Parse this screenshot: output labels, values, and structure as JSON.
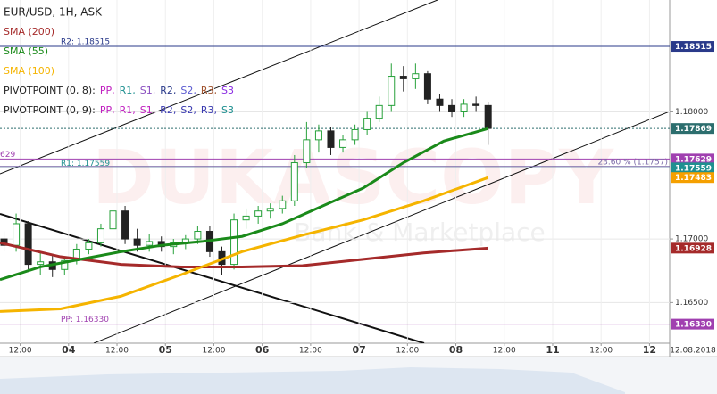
{
  "chart_data": {
    "type": "candlestick",
    "title": "EUR/USD, 1H, ASK",
    "xlim": [
      0,
      166
    ],
    "ylim": [
      1.1618,
      1.1888
    ],
    "grid": true,
    "up_color": "#27a13a",
    "down_color": "#222222",
    "xticks": [
      {
        "value": 5,
        "label": "12:00"
      },
      {
        "value": 17,
        "label": "04"
      },
      {
        "value": 29,
        "label": "12:00"
      },
      {
        "value": 41,
        "label": "05"
      },
      {
        "value": 53,
        "label": "12:00"
      },
      {
        "value": 65,
        "label": "06"
      },
      {
        "value": 77,
        "label": "12:00"
      },
      {
        "value": 89,
        "label": "07"
      },
      {
        "value": 101,
        "label": "12:00"
      },
      {
        "value": 113,
        "label": "08"
      },
      {
        "value": 125,
        "label": "12:00"
      },
      {
        "value": 137,
        "label": "11"
      },
      {
        "value": 149,
        "label": "12:00"
      },
      {
        "value": 161,
        "label": "12"
      }
    ],
    "date_label": "12.08.2018",
    "yticks": [
      {
        "value": 1.165,
        "label": "1.16500"
      },
      {
        "value": 1.17,
        "label": "1.17000"
      },
      {
        "value": 1.18,
        "label": "1.18000"
      }
    ],
    "candles": {
      "x": [
        1,
        4,
        7,
        10,
        13,
        16,
        19,
        22,
        25,
        28,
        31,
        34,
        37,
        40,
        43,
        46,
        49,
        52,
        55,
        58,
        61,
        64,
        67,
        70,
        73,
        76,
        79,
        82,
        85,
        88,
        91,
        94,
        97,
        100,
        103,
        106,
        109,
        112,
        115,
        118,
        121
      ],
      "open": [
        1.17,
        1.1695,
        1.1712,
        1.168,
        1.1682,
        1.1676,
        1.1683,
        1.1692,
        1.1697,
        1.1708,
        1.1722,
        1.17,
        1.1695,
        1.1698,
        1.1694,
        1.1697,
        1.17,
        1.1706,
        1.169,
        1.168,
        1.1715,
        1.1718,
        1.1722,
        1.1724,
        1.173,
        1.176,
        1.1778,
        1.1785,
        1.1772,
        1.1778,
        1.1786,
        1.1795,
        1.1805,
        1.1828,
        1.1826,
        1.183,
        1.181,
        1.1805,
        1.18,
        1.1806,
        1.1805
      ],
      "high": [
        1.1706,
        1.172,
        1.1714,
        1.169,
        1.1688,
        1.1686,
        1.1696,
        1.17,
        1.1712,
        1.174,
        1.1726,
        1.1708,
        1.1704,
        1.1702,
        1.17,
        1.1703,
        1.171,
        1.171,
        1.1694,
        1.172,
        1.1724,
        1.1726,
        1.1728,
        1.1734,
        1.1766,
        1.1792,
        1.179,
        1.1788,
        1.1782,
        1.179,
        1.18,
        1.1812,
        1.1838,
        1.1836,
        1.1838,
        1.1832,
        1.1814,
        1.181,
        1.181,
        1.1812,
        1.1808
      ],
      "low": [
        1.169,
        1.169,
        1.1676,
        1.1672,
        1.167,
        1.1672,
        1.168,
        1.1688,
        1.1694,
        1.1704,
        1.1696,
        1.169,
        1.169,
        1.169,
        1.1688,
        1.1692,
        1.1696,
        1.1686,
        1.1672,
        1.1676,
        1.1708,
        1.1712,
        1.1716,
        1.172,
        1.1726,
        1.1756,
        1.1768,
        1.1766,
        1.1768,
        1.1774,
        1.1782,
        1.1792,
        1.18,
        1.1816,
        1.1818,
        1.1806,
        1.18,
        1.1796,
        1.1796,
        1.18,
        1.1774
      ],
      "close": [
        1.1695,
        1.1712,
        1.168,
        1.1682,
        1.1676,
        1.1683,
        1.1692,
        1.1697,
        1.1708,
        1.1722,
        1.17,
        1.1695,
        1.1698,
        1.1694,
        1.1697,
        1.17,
        1.1706,
        1.169,
        1.168,
        1.1715,
        1.1718,
        1.1722,
        1.1724,
        1.173,
        1.176,
        1.1778,
        1.1785,
        1.1772,
        1.1778,
        1.1786,
        1.1795,
        1.1805,
        1.1828,
        1.1826,
        1.183,
        1.181,
        1.1805,
        1.18,
        1.1806,
        1.1805,
        1.1787
      ]
    },
    "series": [
      {
        "name": "SMA (200)",
        "color": "#a52a2a",
        "x": [
          0,
          15,
          30,
          45,
          60,
          75,
          90,
          105,
          121
        ],
        "values": [
          1.1697,
          1.1686,
          1.168,
          1.1678,
          1.1678,
          1.1679,
          1.1684,
          1.1689,
          1.16928
        ]
      },
      {
        "name": "SMA (55)",
        "color": "#1a8a1a",
        "x": [
          0,
          10,
          20,
          30,
          40,
          50,
          60,
          70,
          80,
          90,
          100,
          110,
          121
        ],
        "values": [
          1.1668,
          1.1678,
          1.1684,
          1.169,
          1.1695,
          1.1698,
          1.1702,
          1.1712,
          1.1726,
          1.174,
          1.176,
          1.1777,
          1.17869
        ]
      },
      {
        "name": "SMA (100)",
        "color": "#f5b400",
        "x": [
          0,
          15,
          30,
          45,
          60,
          75,
          90,
          105,
          121
        ],
        "values": [
          1.1643,
          1.1645,
          1.1655,
          1.1672,
          1.169,
          1.1703,
          1.1715,
          1.173,
          1.17483
        ]
      }
    ],
    "pivots": [
      {
        "name": "PIVOTPOINT (0, 8):",
        "items": [
          {
            "name": "PP,",
            "color": "#c020c0"
          },
          {
            "name": "R1,",
            "color": "#1e9090"
          },
          {
            "name": "S1,",
            "color": "#8a4fc0"
          },
          {
            "name": "R2,",
            "color": "#2a3a8a"
          },
          {
            "name": "S2,",
            "color": "#5a5ad0"
          },
          {
            "name": "R3,",
            "color": "#a0522d"
          },
          {
            "name": "S3",
            "color": "#8a2be2"
          }
        ]
      },
      {
        "name": "PIVOTPOINT (0, 9):",
        "items": [
          {
            "name": "PP,",
            "color": "#c020c0"
          },
          {
            "name": "R1,",
            "color": "#c020c0"
          },
          {
            "name": "S1,",
            "color": "#c020c0"
          },
          {
            "name": "R2,",
            "color": "#3a3ab0"
          },
          {
            "name": "S2,",
            "color": "#3a3ab0"
          },
          {
            "name": "R3,",
            "color": "#3a3ab0"
          },
          {
            "name": "S3",
            "color": "#1e9090"
          }
        ]
      }
    ],
    "levels": [
      {
        "value": 1.18515,
        "label": "R2: 1.18515",
        "color": "#2a3a8a"
      },
      {
        "value": 1.17629,
        "edge_label": "629",
        "color": "#a040b0"
      },
      {
        "value": 1.17559,
        "label": "R1: 1.17559",
        "color": "#1e9090"
      },
      {
        "value": 1.1633,
        "label": "PP: 1.16330",
        "color": "#a040b0"
      }
    ],
    "fib": {
      "value": 1.1757,
      "label": "23.60 % (1.1757)",
      "color": "#7b6aa8"
    },
    "badges": [
      {
        "value": 1.18515,
        "label": "1.18515",
        "color": "#2a3a8a"
      },
      {
        "value": 1.17869,
        "label": "1.17869",
        "color": "#2c6e6e",
        "dashed": true
      },
      {
        "value": 1.17629,
        "label": "1.17629",
        "color": "#a040b0"
      },
      {
        "value": 1.17559,
        "label": "1.17559",
        "color": "#1e9090"
      },
      {
        "value": 1.17483,
        "label": "1.17483",
        "color": "#f5a000"
      },
      {
        "value": 1.16928,
        "label": "1.16928",
        "color": "#a52a2a"
      },
      {
        "value": 1.1633,
        "label": "1.16330",
        "color": "#a040b0"
      }
    ],
    "watermark": "DUKASCOPY",
    "watermark_sub": "Bank & Marketplace"
  }
}
